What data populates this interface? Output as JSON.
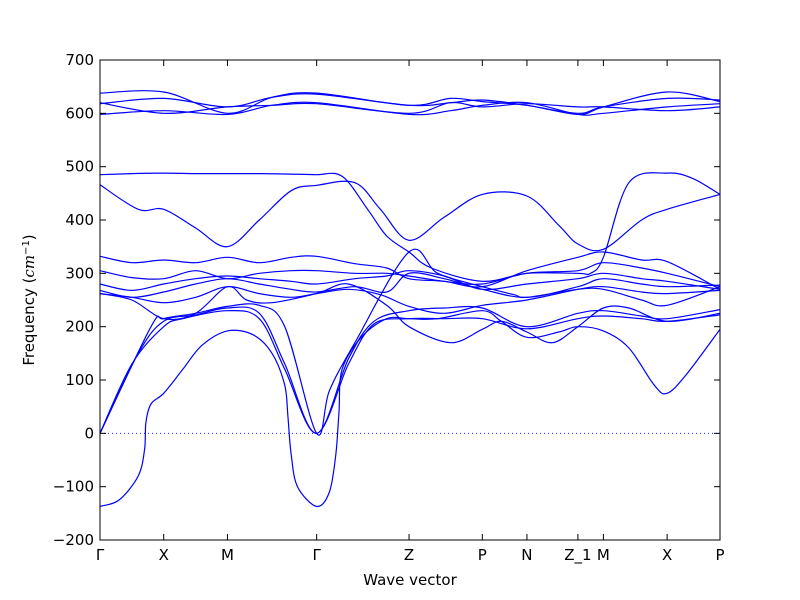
{
  "chart_data": {
    "type": "line",
    "title": "",
    "xlabel": "Wave vector",
    "ylabel_prefix": "Frequency (",
    "ylabel_unit": "cm",
    "ylabel_exp": "−1",
    "ylabel_suffix": ")",
    "ylim": [
      -200,
      700
    ],
    "yticks": [
      "−200",
      "−100",
      "0",
      "100",
      "200",
      "300",
      "400",
      "500",
      "600",
      "700"
    ],
    "ytick_values": [
      -200,
      -100,
      0,
      100,
      200,
      300,
      400,
      500,
      600,
      700
    ],
    "xlim": [
      0,
      9.73
    ],
    "xticks": [
      {
        "label": "Γ",
        "x": 0
      },
      {
        "label": "X",
        "x": 1
      },
      {
        "label": "M",
        "x": 2
      },
      {
        "label": "Γ",
        "x": 3.4
      },
      {
        "label": "Z",
        "x": 4.85
      },
      {
        "label": "P",
        "x": 6
      },
      {
        "label": "N",
        "x": 6.7
      },
      {
        "label": "Z_1",
        "x": 7.5
      },
      {
        "label": "M",
        "x": 7.9
      },
      {
        "label": "X",
        "x": 8.9
      },
      {
        "label": "P",
        "x": 9.73
      }
    ],
    "zero_line": true,
    "grid": false,
    "line_color": "#0000ff",
    "series": [
      {
        "points": [
          [
            0,
            -137
          ],
          [
            0.3,
            -125
          ],
          [
            0.6,
            -80
          ],
          [
            0.7,
            -30
          ],
          [
            0.72,
            20
          ],
          [
            0.8,
            55
          ],
          [
            1,
            75
          ],
          [
            1.3,
            120
          ],
          [
            1.6,
            165
          ],
          [
            2,
            192
          ],
          [
            2.4,
            185
          ],
          [
            2.7,
            150
          ],
          [
            2.9,
            90
          ],
          [
            2.95,
            30
          ],
          [
            3,
            -40
          ],
          [
            3.1,
            -100
          ],
          [
            3.4,
            -137
          ],
          [
            3.6,
            -110
          ],
          [
            3.7,
            -40
          ],
          [
            3.75,
            40
          ],
          [
            3.8,
            120
          ],
          [
            4.1,
            180
          ],
          [
            4.5,
            215
          ],
          [
            4.85,
            215
          ],
          [
            5.3,
            215
          ],
          [
            6,
            230
          ],
          [
            6.3,
            210
          ],
          [
            6.7,
            180
          ],
          [
            7.2,
            190
          ],
          [
            7.5,
            200
          ],
          [
            7.9,
            192
          ],
          [
            8.3,
            160
          ],
          [
            8.7,
            90
          ],
          [
            8.9,
            75
          ],
          [
            9.2,
            110
          ],
          [
            9.73,
            195
          ]
        ]
      },
      {
        "points": [
          [
            0,
            0
          ],
          [
            0.5,
            130
          ],
          [
            1,
            200
          ],
          [
            1.3,
            215
          ],
          [
            2,
            230
          ],
          [
            2.5,
            215
          ],
          [
            2.9,
            120
          ],
          [
            3.4,
            0
          ],
          [
            3.9,
            130
          ],
          [
            4.3,
            205
          ],
          [
            4.85,
            215
          ],
          [
            5.4,
            215
          ],
          [
            6,
            215
          ],
          [
            6.7,
            196
          ],
          [
            7.5,
            215
          ],
          [
            7.9,
            220
          ],
          [
            8.5,
            215
          ],
          [
            8.9,
            210
          ],
          [
            9.73,
            222
          ]
        ]
      },
      {
        "points": [
          [
            0,
            0
          ],
          [
            0.6,
            150
          ],
          [
            1,
            210
          ],
          [
            1.5,
            222
          ],
          [
            2,
            235
          ],
          [
            2.5,
            225
          ],
          [
            2.9,
            130
          ],
          [
            3.4,
            0
          ],
          [
            3.9,
            140
          ],
          [
            4.3,
            210
          ],
          [
            4.85,
            230
          ],
          [
            5.4,
            235
          ],
          [
            6,
            235
          ],
          [
            6.7,
            200
          ],
          [
            7.5,
            225
          ],
          [
            7.9,
            230
          ],
          [
            8.5,
            220
          ],
          [
            8.9,
            215
          ],
          [
            9.73,
            232
          ]
        ]
      },
      {
        "points": [
          [
            0,
            0
          ],
          [
            0.8,
            200
          ],
          [
            1,
            215
          ],
          [
            1.5,
            225
          ],
          [
            2,
            238
          ],
          [
            2.5,
            240
          ],
          [
            2.9,
            200
          ],
          [
            3.4,
            0
          ],
          [
            3.6,
            80
          ],
          [
            4.0,
            170
          ],
          [
            4.85,
            340
          ],
          [
            5.3,
            300
          ],
          [
            6,
            275
          ],
          [
            6.5,
            260
          ],
          [
            6.7,
            255
          ],
          [
            7.5,
            270
          ],
          [
            7.9,
            270
          ],
          [
            8.5,
            250
          ],
          [
            8.9,
            240
          ],
          [
            9.73,
            275
          ]
        ]
      },
      {
        "points": [
          [
            0,
            262
          ],
          [
            0.5,
            250
          ],
          [
            1,
            215
          ],
          [
            1.5,
            225
          ],
          [
            2,
            275
          ],
          [
            2.3,
            250
          ],
          [
            2.7,
            245
          ],
          [
            3.4,
            262
          ],
          [
            3.9,
            280
          ],
          [
            4.5,
            240
          ],
          [
            4.85,
            200
          ],
          [
            5.5,
            170
          ],
          [
            6,
            195
          ],
          [
            6.3,
            210
          ],
          [
            6.7,
            190
          ],
          [
            7.1,
            170
          ],
          [
            7.5,
            200
          ],
          [
            7.9,
            235
          ],
          [
            8.3,
            235
          ],
          [
            8.9,
            210
          ],
          [
            9.73,
            225
          ]
        ]
      },
      {
        "points": [
          [
            0,
            262
          ],
          [
            0.5,
            255
          ],
          [
            1,
            245
          ],
          [
            1.5,
            255
          ],
          [
            2,
            275
          ],
          [
            2.5,
            262
          ],
          [
            3,
            255
          ],
          [
            3.4,
            262
          ],
          [
            3.9,
            270
          ],
          [
            4.4,
            260
          ],
          [
            4.85,
            238
          ],
          [
            5.4,
            225
          ],
          [
            6,
            240
          ],
          [
            6.7,
            250
          ],
          [
            7.5,
            270
          ],
          [
            7.9,
            275
          ],
          [
            8.5,
            265
          ],
          [
            8.9,
            262
          ],
          [
            9.73,
            268
          ]
        ]
      },
      {
        "points": [
          [
            0,
            268
          ],
          [
            0.5,
            255
          ],
          [
            1,
            265
          ],
          [
            1.5,
            280
          ],
          [
            2,
            290
          ],
          [
            2.5,
            280
          ],
          [
            3,
            270
          ],
          [
            3.4,
            265
          ],
          [
            4.0,
            275
          ],
          [
            4.5,
            265
          ],
          [
            4.85,
            300
          ],
          [
            5.4,
            290
          ],
          [
            6,
            270
          ],
          [
            6.7,
            255
          ],
          [
            7.5,
            275
          ],
          [
            7.9,
            290
          ],
          [
            8.5,
            280
          ],
          [
            8.9,
            275
          ],
          [
            9.73,
            278
          ]
        ]
      },
      {
        "points": [
          [
            0,
            280
          ],
          [
            0.5,
            268
          ],
          [
            1,
            280
          ],
          [
            1.5,
            290
          ],
          [
            2,
            295
          ],
          [
            2.5,
            290
          ],
          [
            3,
            285
          ],
          [
            3.4,
            280
          ],
          [
            4.0,
            290
          ],
          [
            4.5,
            295
          ],
          [
            4.85,
            305
          ],
          [
            5.4,
            295
          ],
          [
            6,
            270
          ],
          [
            6.7,
            280
          ],
          [
            7.5,
            290
          ],
          [
            7.9,
            300
          ],
          [
            8.5,
            290
          ],
          [
            8.9,
            285
          ],
          [
            9.73,
            270
          ]
        ]
      },
      {
        "points": [
          [
            0,
            305
          ],
          [
            0.5,
            292
          ],
          [
            1,
            290
          ],
          [
            1.5,
            305
          ],
          [
            2,
            290
          ],
          [
            2.5,
            300
          ],
          [
            3,
            305
          ],
          [
            3.4,
            305
          ],
          [
            4.0,
            300
          ],
          [
            4.5,
            300
          ],
          [
            4.85,
            295
          ],
          [
            5.4,
            285
          ],
          [
            6,
            280
          ],
          [
            6.7,
            300
          ],
          [
            7.5,
            305
          ],
          [
            7.9,
            320
          ],
          [
            8.5,
            310
          ],
          [
            8.9,
            300
          ],
          [
            9.73,
            275
          ]
        ]
      },
      {
        "points": [
          [
            0,
            332
          ],
          [
            0.5,
            320
          ],
          [
            1,
            325
          ],
          [
            1.5,
            320
          ],
          [
            2,
            330
          ],
          [
            2.5,
            320
          ],
          [
            3,
            330
          ],
          [
            3.4,
            332
          ],
          [
            4.0,
            318
          ],
          [
            4.5,
            310
          ],
          [
            4.85,
            290
          ],
          [
            5.4,
            285
          ],
          [
            6,
            275
          ],
          [
            6.7,
            305
          ],
          [
            7.5,
            330
          ],
          [
            7.9,
            340
          ],
          [
            8.5,
            325
          ],
          [
            8.9,
            322
          ],
          [
            9.73,
            270
          ]
        ]
      },
      {
        "points": [
          [
            0,
            466
          ],
          [
            0.6,
            420
          ],
          [
            1,
            420
          ],
          [
            1.5,
            385
          ],
          [
            2,
            350
          ],
          [
            2.5,
            400
          ],
          [
            3,
            455
          ],
          [
            3.4,
            465
          ],
          [
            4.0,
            470
          ],
          [
            4.4,
            420
          ],
          [
            4.85,
            362
          ],
          [
            5.4,
            405
          ],
          [
            6,
            448
          ],
          [
            6.7,
            445
          ],
          [
            7.2,
            390
          ],
          [
            7.5,
            355
          ],
          [
            7.9,
            345
          ],
          [
            8.5,
            400
          ],
          [
            8.9,
            420
          ],
          [
            9.73,
            448
          ]
        ]
      },
      {
        "points": [
          [
            0,
            485
          ],
          [
            0.5,
            487
          ],
          [
            1,
            488
          ],
          [
            1.5,
            487
          ],
          [
            2,
            487
          ],
          [
            2.5,
            487
          ],
          [
            3,
            486
          ],
          [
            3.4,
            485
          ],
          [
            3.8,
            482
          ],
          [
            4.2,
            420
          ],
          [
            4.5,
            370
          ],
          [
            4.85,
            340
          ],
          [
            5.2,
            310
          ],
          [
            6,
            285
          ],
          [
            6.7,
            300
          ],
          [
            7.5,
            300
          ],
          [
            7.7,
            300
          ],
          [
            7.9,
            330
          ],
          [
            8.3,
            470
          ],
          [
            8.9,
            488
          ],
          [
            9.3,
            478
          ],
          [
            9.73,
            448
          ]
        ]
      },
      {
        "points": [
          [
            0,
            598
          ],
          [
            1,
            605
          ],
          [
            2,
            598
          ],
          [
            2.7,
            615
          ],
          [
            3.4,
            620
          ],
          [
            4.85,
            598
          ],
          [
            5.5,
            605
          ],
          [
            6,
            615
          ],
          [
            6.7,
            620
          ],
          [
            7.5,
            598
          ],
          [
            7.9,
            600
          ],
          [
            8.9,
            612
          ],
          [
            9.73,
            618
          ]
        ]
      },
      {
        "points": [
          [
            0,
            618
          ],
          [
            1,
            628
          ],
          [
            2,
            612
          ],
          [
            2.7,
            630
          ],
          [
            3.4,
            636
          ],
          [
            4.85,
            615
          ],
          [
            5.5,
            620
          ],
          [
            6,
            625
          ],
          [
            6.7,
            615
          ],
          [
            7.5,
            600
          ],
          [
            7.9,
            612
          ],
          [
            8.9,
            628
          ],
          [
            9.73,
            625
          ]
        ]
      },
      {
        "points": [
          [
            0,
            620
          ],
          [
            1,
            600
          ],
          [
            2,
            612
          ],
          [
            2.7,
            615
          ],
          [
            3.4,
            618
          ],
          [
            4.85,
            600
          ],
          [
            5.5,
            620
          ],
          [
            6,
            612
          ],
          [
            6.7,
            618
          ],
          [
            7.5,
            612
          ],
          [
            7.9,
            612
          ],
          [
            8.9,
            605
          ],
          [
            9.73,
            612
          ]
        ]
      },
      {
        "points": [
          [
            0,
            638
          ],
          [
            1,
            640
          ],
          [
            2,
            600
          ],
          [
            2.7,
            630
          ],
          [
            3.4,
            638
          ],
          [
            4.85,
            615
          ],
          [
            5.5,
            628
          ],
          [
            6,
            622
          ],
          [
            6.7,
            615
          ],
          [
            7.5,
            598
          ],
          [
            7.9,
            612
          ],
          [
            8.9,
            640
          ],
          [
            9.73,
            622
          ]
        ]
      }
    ]
  }
}
